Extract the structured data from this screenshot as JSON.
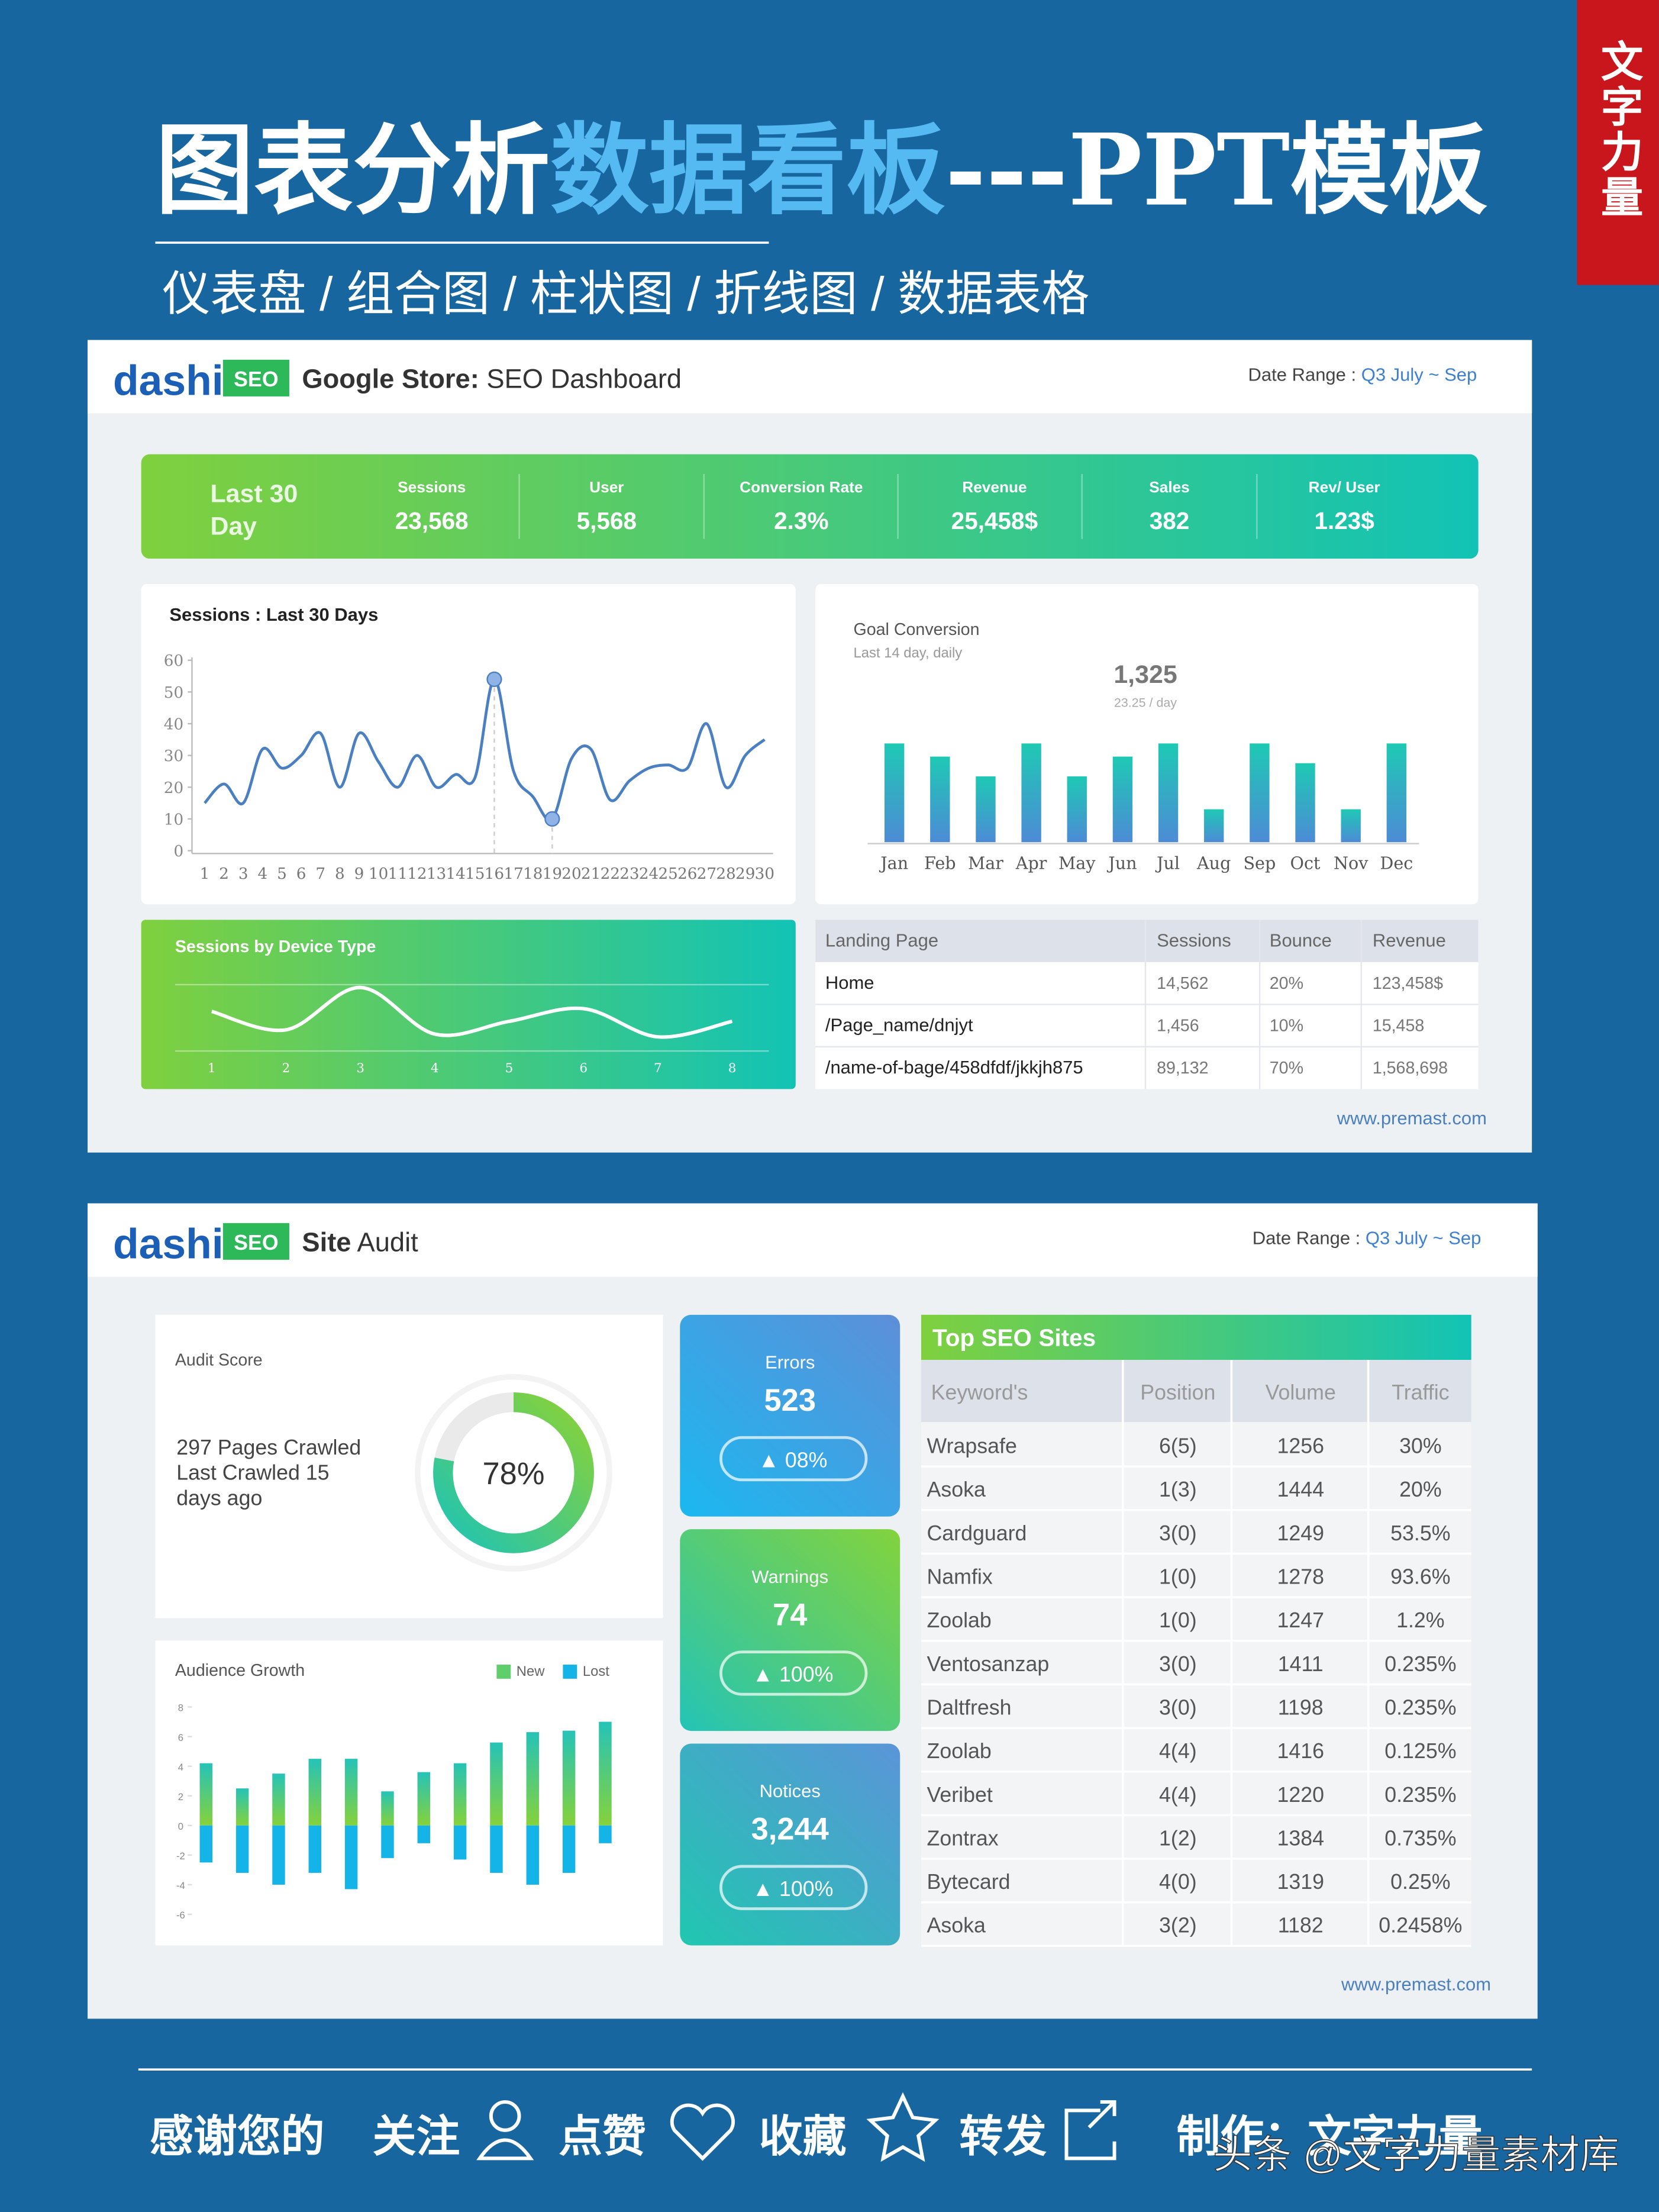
{
  "header": {
    "title_part1": "图表分析",
    "title_part2": "数据看板",
    "title_part3": "---PPT模板",
    "subtitle": "仪表盘 / 组合图 / 柱状图 / 折线图 / 数据表格",
    "badge": "文字力量"
  },
  "dashboard1": {
    "logo": "dashi",
    "logo_tag": "SEO",
    "title_bold": "Google Store:",
    "title_rest": " SEO Dashboard",
    "date_label": "Date Range :",
    "date_quarter": " Q3",
    "date_range": " July ~ Sep",
    "kpi_period": [
      "Last 30",
      "Day"
    ],
    "kpis": [
      {
        "label": "Sessions",
        "value": "23,568"
      },
      {
        "label": "User",
        "value": "5,568"
      },
      {
        "label": "Conversion Rate",
        "value": "2.3%"
      },
      {
        "label": "Revenue",
        "value": "25,458$"
      },
      {
        "label": "Sales",
        "value": 382
      },
      {
        "label": "Rev/ User",
        "value": "1.23$"
      }
    ],
    "sessions_chart": {
      "type": "line",
      "title": "Sessions : Last 30 Days",
      "ylim": [
        0,
        60
      ],
      "yticks": [
        0,
        10,
        20,
        30,
        40,
        50,
        60
      ],
      "categories": [
        1,
        2,
        3,
        4,
        5,
        6,
        7,
        8,
        9,
        10,
        11,
        12,
        13,
        14,
        15,
        16,
        17,
        18,
        19,
        20,
        21,
        22,
        23,
        24,
        25,
        26,
        27,
        28,
        29,
        30
      ],
      "values": [
        15,
        21,
        15,
        32,
        26,
        30,
        37,
        20,
        37,
        28,
        20,
        30,
        20,
        24,
        23,
        54,
        25,
        17,
        10,
        29,
        32,
        16,
        22,
        26,
        27,
        26,
        40,
        20,
        30,
        35
      ],
      "color": "#4a7fc1"
    },
    "goal_chart": {
      "type": "bar",
      "title": "Goal Conversion",
      "subtitle": "Last 14 day, daily",
      "total": "1,325",
      "per_day": "23.25 / day",
      "categories": [
        "Jan",
        "Feb",
        "Mar",
        "Apr",
        "May",
        "Jun",
        "Jul",
        "Aug",
        "Sep",
        "Oct",
        "Nov",
        "Dec"
      ],
      "values": [
        30,
        26,
        20,
        30,
        20,
        26,
        30,
        10,
        30,
        24,
        10,
        30
      ]
    },
    "device_chart": {
      "type": "line",
      "title": "Sessions by Device Type",
      "categories": [
        1,
        2,
        3,
        4,
        5,
        6,
        7,
        8
      ],
      "values": [
        23,
        10,
        40,
        7,
        16,
        25,
        5,
        16
      ],
      "color": "#ffffff"
    },
    "landing_table": {
      "headers": [
        "Landing Page",
        "Sessions",
        "Bounce",
        "Revenue"
      ],
      "rows": [
        [
          "Home",
          "14,562",
          "20%",
          "123,458$"
        ],
        [
          "/Page_name/dnjyt",
          "1,456",
          "10%",
          "15,458"
        ],
        [
          "/name-of-bage/458dfdf/jkkjh875",
          "89,132",
          "70%",
          "1,568,698"
        ]
      ]
    },
    "url": "www.premast.com"
  },
  "dashboard2": {
    "logo": "dashi",
    "logo_tag": "SEO",
    "title_bold": "Site",
    "title_rest": " Audit",
    "date_label": "Date Range :",
    "date_quarter": " Q3",
    "date_range": " July ~ Sep",
    "audit": {
      "label": "Audit Score",
      "lines": [
        "297 Pages Crawled",
        "Last Crawled 15",
        "days ago"
      ],
      "value": 78,
      "value_label": "78%"
    },
    "cards": [
      {
        "label": "Errors",
        "value": 523,
        "change": "▲ 08%"
      },
      {
        "label": "Warnings",
        "value": 74,
        "change": "▲ 100%"
      },
      {
        "label": "Notices",
        "value": "3,244",
        "change": "▲ 100%"
      }
    ],
    "audience_chart": {
      "type": "bar",
      "title": "Audience Growth",
      "ylim": [
        -6,
        8
      ],
      "yticks": [
        8,
        6,
        4,
        2,
        0,
        -2,
        -4,
        -6
      ],
      "series": [
        {
          "name": "New",
          "color": "#5fcf6c",
          "values": [
            4.2,
            2.5,
            3.5,
            4.5,
            4.5,
            2.3,
            3.6,
            4.2,
            5.6,
            6.3,
            6.4,
            7
          ]
        },
        {
          "name": "Lost",
          "color": "#15b4e8",
          "values": [
            -2.5,
            -3.2,
            -4,
            -3.2,
            -4.3,
            -2.2,
            -1.2,
            -2.3,
            -3.2,
            -4,
            -3.2,
            -1.2
          ]
        }
      ]
    },
    "top_sites": {
      "title": "Top SEO Sites",
      "headers": [
        "Keyword's",
        "Position",
        "Volume",
        "Traffic"
      ],
      "rows": [
        [
          "Wrapsafe",
          "6(5)",
          1256,
          "30%"
        ],
        [
          "Asoka",
          "1(3)",
          1444,
          "20%"
        ],
        [
          "Cardguard",
          "3(0)",
          1249,
          "53.5%"
        ],
        [
          "Namfix",
          "1(0)",
          1278,
          "93.6%"
        ],
        [
          "Zoolab",
          "1(0)",
          1247,
          "1.2%"
        ],
        [
          "Ventosanzap",
          "3(0)",
          1411,
          "0.235%"
        ],
        [
          "Daltfresh",
          "3(0)",
          1198,
          "0.235%"
        ],
        [
          "Zoolab",
          "4(4)",
          1416,
          "0.125%"
        ],
        [
          "Veribet",
          "4(4)",
          1220,
          "0.235%"
        ],
        [
          "Zontrax",
          "1(2)",
          1384,
          "0.735%"
        ],
        [
          "Bytecard",
          "4(0)",
          1319,
          "0.25%"
        ],
        [
          "Asoka",
          "3(2)",
          1182,
          "0.2458%"
        ]
      ]
    },
    "url": "www.premast.com"
  },
  "footer": {
    "thanks": "感谢您的",
    "items": [
      "关注",
      "点赞",
      "收藏",
      "转发"
    ],
    "maker": "制作：文字力量",
    "watermark": "头条 @文字力量素材库"
  }
}
